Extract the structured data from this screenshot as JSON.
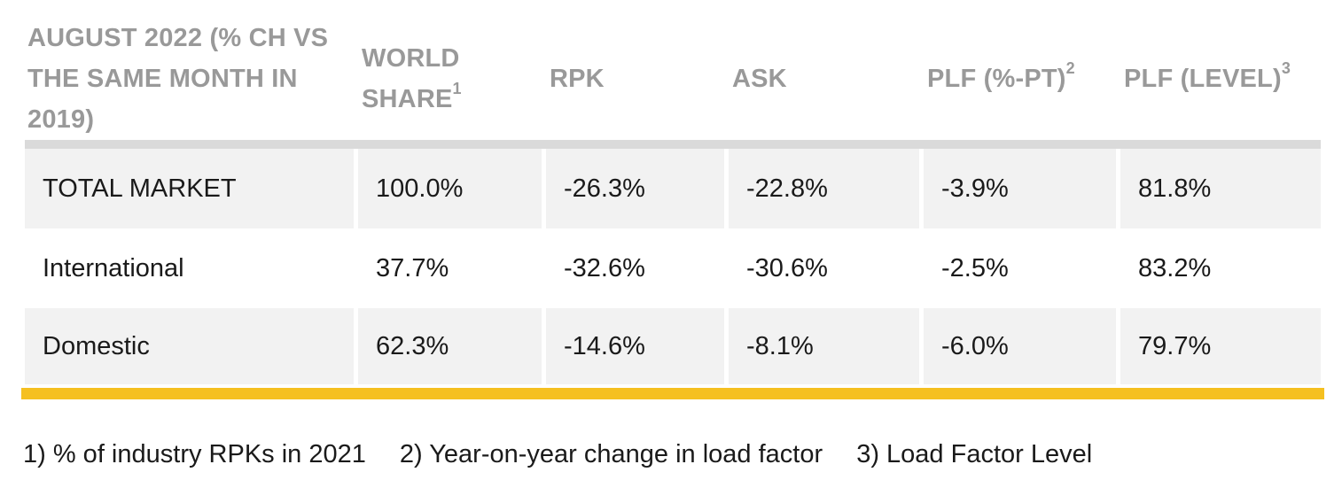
{
  "table": {
    "headers": [
      {
        "text": "AUGUST 2022 (% CH VS THE SAME MONTH IN 2019)",
        "sup": ""
      },
      {
        "text": "WORLD SHARE",
        "sup": "1"
      },
      {
        "text": "RPK",
        "sup": ""
      },
      {
        "text": "ASK",
        "sup": ""
      },
      {
        "text": "PLF (%-PT)",
        "sup": "2"
      },
      {
        "text": "PLF (LEVEL)",
        "sup": "3"
      }
    ],
    "rows": [
      {
        "cells": [
          "TOTAL MARKET",
          "100.0%",
          "-26.3%",
          "-22.8%",
          "-3.9%",
          "81.8%"
        ]
      },
      {
        "cells": [
          "International",
          "37.7%",
          "-32.6%",
          "-30.6%",
          "-2.5%",
          "83.2%"
        ]
      },
      {
        "cells": [
          "Domestic",
          "62.3%",
          "-14.6%",
          "-8.1%",
          "-6.0%",
          "79.7%"
        ]
      }
    ]
  },
  "footnotes": [
    "1) % of industry RPKs in 2021",
    "2) Year-on-year change in load factor",
    "3) Load Factor Level"
  ],
  "colors": {
    "header_text": "#999999",
    "row_shade": "#f2f2f2",
    "accent_rule": "#f5c020",
    "body_text": "#1a1a1a"
  }
}
